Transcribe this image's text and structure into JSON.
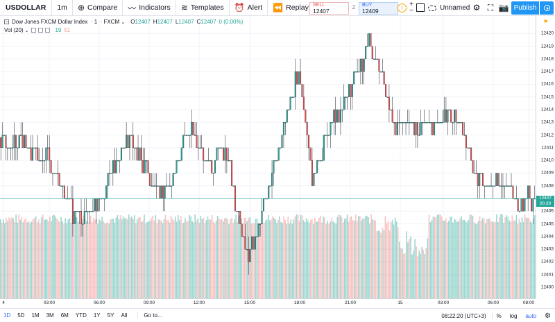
{
  "toolbar": {
    "symbol": "USDOLLAR",
    "interval": "1m",
    "compare": "Compare",
    "indicators": "Indicators",
    "templates": "Templates",
    "alert": "Alert",
    "replay": "Replay",
    "sell_label": "SELL",
    "sell_price": "12407",
    "spread": "2",
    "buy_label": "BUY",
    "buy_price": "12409",
    "layout_name": "Unnamed",
    "publish": "Publish"
  },
  "legend": {
    "title": "Dow Jones FXCM Dollar Index",
    "interval": "1",
    "source": "FXCM",
    "open": "12407",
    "high": "12407",
    "low": "12407",
    "close": "12407",
    "change": "0 (0.00%)",
    "o_prefix": "O",
    "h_prefix": "H",
    "l_prefix": "L",
    "c_prefix": "C",
    "vol_label": "Vol (20)",
    "vol_value1": "19",
    "vol_value2": "51"
  },
  "price_axis": {
    "ticks": [
      "12420",
      "12419",
      "12418",
      "12417",
      "12416",
      "12415",
      "12414",
      "12413",
      "12412",
      "12411",
      "12410",
      "12409",
      "12408",
      "12407",
      "12406",
      "12405",
      "12404",
      "12403",
      "12402",
      "12401",
      "12400"
    ],
    "last_price": "12407",
    "countdown": "00:39"
  },
  "time_axis": {
    "ticks": [
      "4",
      "03:00",
      "06:00",
      "09:00",
      "12:00",
      "15:00",
      "18:00",
      "21:00",
      "15",
      "03:00",
      "06:00",
      "08:00"
    ]
  },
  "bottombar": {
    "ranges": [
      "1D",
      "5D",
      "1M",
      "3M",
      "6M",
      "YTD",
      "1Y",
      "5Y",
      "All"
    ],
    "goto": "Go to...",
    "clock": "08:22:20 (UTC+3)",
    "percent": "%",
    "log": "log",
    "auto": "auto"
  },
  "colors": {
    "up": "#26a69a",
    "down": "#ef5350",
    "accent": "#2196f3"
  },
  "icons": {
    "compare": "plus-circle-icon",
    "indicators": "indicators-icon",
    "templates": "templates-icon",
    "alert": "alarm-clock-icon",
    "replay": "replay-icon",
    "undo": "undo-icon",
    "redo": "redo-icon",
    "settings": "gear-icon",
    "fullscreen": "fullscreen-icon",
    "snapshot": "camera-icon"
  },
  "chart_data": {
    "type": "candlestick",
    "ylim": [
      12400,
      12421
    ],
    "x_ticks": [
      "4",
      "03:00",
      "06:00",
      "09:00",
      "12:00",
      "15:00",
      "18:00",
      "21:00",
      "15",
      "03:00",
      "06:00",
      "08:00"
    ],
    "last_price": 12407,
    "price_path": [
      [
        0,
        12411.8
      ],
      [
        3,
        12411
      ],
      [
        6,
        12411.5
      ],
      [
        9,
        12410.5
      ],
      [
        12,
        12410
      ],
      [
        14,
        12410.5
      ],
      [
        16,
        12409
      ],
      [
        18,
        12408
      ],
      [
        20,
        12407
      ],
      [
        22,
        12405.5
      ],
      [
        25,
        12405.8
      ],
      [
        28,
        12406.5
      ],
      [
        31,
        12407.5
      ],
      [
        33,
        12409
      ],
      [
        36,
        12411
      ],
      [
        39,
        12411.5
      ],
      [
        42,
        12410
      ],
      [
        45,
        12408.5
      ],
      [
        48,
        12407.5
      ],
      [
        50,
        12408
      ],
      [
        53,
        12410
      ],
      [
        55,
        12412
      ],
      [
        57,
        12412.2
      ],
      [
        60,
        12411
      ],
      [
        62,
        12409.5
      ],
      [
        64,
        12409.8
      ],
      [
        66,
        12411
      ],
      [
        68,
        12410
      ],
      [
        70,
        12407
      ],
      [
        72,
        12404
      ],
      [
        74,
        12402.5
      ],
      [
        76,
        12404
      ],
      [
        78,
        12406
      ],
      [
        80,
        12408
      ],
      [
        82,
        12410
      ],
      [
        84,
        12412
      ],
      [
        86,
        12414
      ],
      [
        88,
        12416
      ],
      [
        89,
        12416.5
      ],
      [
        91,
        12413
      ],
      [
        93,
        12409
      ],
      [
        95,
        12409.5
      ],
      [
        97,
        12412
      ],
      [
        99,
        12413
      ],
      [
        101,
        12414
      ],
      [
        103,
        12415
      ],
      [
        105,
        12416
      ],
      [
        107,
        12417
      ],
      [
        109,
        12418.5
      ],
      [
        110,
        12419.5
      ],
      [
        111,
        12419
      ],
      [
        113,
        12417.5
      ],
      [
        115,
        12415
      ],
      [
        117,
        12413
      ],
      [
        119,
        12413
      ],
      [
        122,
        12412.5
      ],
      [
        125,
        12413
      ],
      [
        128,
        12412.8
      ],
      [
        131,
        12413
      ],
      [
        133,
        12413.5
      ],
      [
        136,
        12413
      ],
      [
        138,
        12412.5
      ],
      [
        140,
        12411
      ],
      [
        141,
        12409
      ],
      [
        143,
        12408.5
      ],
      [
        145,
        12408
      ],
      [
        148,
        12408.5
      ],
      [
        150,
        12408
      ],
      [
        152,
        12407.5
      ],
      [
        154,
        12406.5
      ],
      [
        156,
        12407
      ],
      [
        158,
        12407
      ],
      [
        160,
        12407
      ]
    ],
    "volume_level": 0.94
  }
}
